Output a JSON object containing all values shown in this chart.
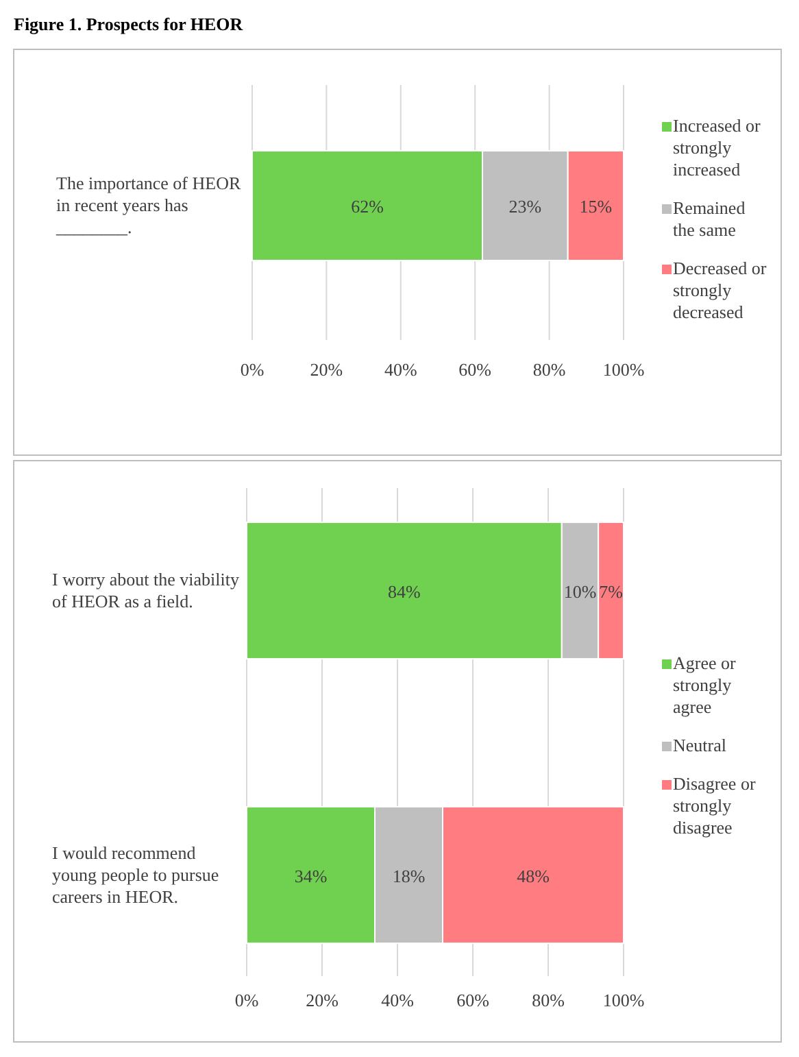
{
  "chart_data": [
    {
      "type": "bar",
      "title": "Figure 1. Prospects for HEOR",
      "orientation": "horizontal",
      "stacked": true,
      "categories": [
        "The importance of HEOR in recent years has ________."
      ],
      "series": [
        {
          "name": "Increased or strongly increased",
          "color": "#70d050",
          "values": [
            62
          ],
          "value_labels": [
            "62%"
          ]
        },
        {
          "name": "Remained the same",
          "color": "#bfbfbf",
          "values": [
            23
          ],
          "value_labels": [
            "23%"
          ]
        },
        {
          "name": "Decreased or strongly decreased",
          "color": "#ff7c80",
          "values": [
            15
          ],
          "value_labels": [
            "15%"
          ]
        }
      ],
      "xlim": [
        0,
        100
      ],
      "xticks": [
        {
          "value": 0,
          "label": "0%"
        },
        {
          "value": 20,
          "label": "20%"
        },
        {
          "value": 40,
          "label": "40%"
        },
        {
          "value": 60,
          "label": "60%"
        },
        {
          "value": 80,
          "label": "80%"
        },
        {
          "value": 100,
          "label": "100%"
        }
      ],
      "grid": "x",
      "legend": "right"
    },
    {
      "type": "bar",
      "orientation": "horizontal",
      "stacked": true,
      "categories": [
        "I worry about the viability of HEOR as a field.",
        "I would recommend young people to pursue careers in HEOR."
      ],
      "series": [
        {
          "name": "Agree or strongly agree",
          "color": "#70d050",
          "values": [
            83.6,
            34
          ],
          "value_labels": [
            "84%",
            "34%"
          ]
        },
        {
          "name": "Neutral",
          "color": "#bfbfbf",
          "values": [
            9.7,
            18
          ],
          "value_labels": [
            "10%",
            "18%"
          ]
        },
        {
          "name": "Disagree or strongly disagree",
          "color": "#ff7c80",
          "values": [
            6.7,
            48
          ],
          "value_labels": [
            "7%",
            "48%"
          ]
        }
      ],
      "xlim": [
        0,
        100
      ],
      "xticks": [
        {
          "value": 0,
          "label": "0%"
        },
        {
          "value": 20,
          "label": "20%"
        },
        {
          "value": 40,
          "label": "40%"
        },
        {
          "value": 60,
          "label": "60%"
        },
        {
          "value": 80,
          "label": "80%"
        },
        {
          "value": 100,
          "label": "100%"
        }
      ],
      "grid": "x",
      "legend": "right"
    }
  ]
}
